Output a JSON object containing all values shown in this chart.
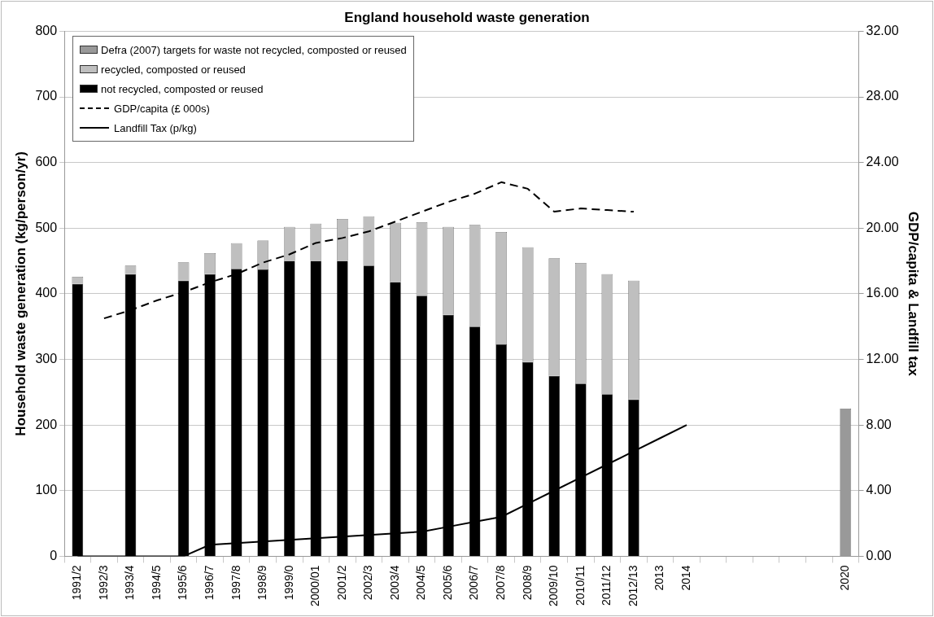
{
  "chart_data": {
    "type": "bar",
    "title": "England household waste generation",
    "ylabel": "Household waste generation (kg/person/yr)",
    "y2label": "GDP/capita & Landfill tax",
    "categories": [
      "1991/2",
      "1992/3",
      "1993/4",
      "1994/5",
      "1995/6",
      "1996/7",
      "1997/8",
      "1998/9",
      "1999/0",
      "2000/01",
      "2001/2",
      "2002/3",
      "2003/4",
      "2004/5",
      "2005/6",
      "2006/7",
      "2007/8",
      "2008/9",
      "2009/10",
      "2010/11",
      "2011/12",
      "2012/13",
      "2013",
      "2014",
      null,
      null,
      null,
      null,
      null,
      "2020"
    ],
    "stacked": true,
    "series": [
      {
        "name": "not recycled, composted or reused",
        "color": "#000000",
        "values": [
          415,
          null,
          430,
          null,
          420,
          430,
          438,
          437,
          450,
          450,
          450,
          443,
          418,
          397,
          368,
          350,
          323,
          296,
          275,
          263,
          247,
          239,
          null,
          null,
          null,
          null,
          null,
          null,
          null,
          null
        ]
      },
      {
        "name": "recycled, composted or reused",
        "color": "#bfbfbf",
        "values": [
          11,
          null,
          13,
          null,
          28,
          32,
          39,
          44,
          52,
          57,
          64,
          75,
          90,
          112,
          134,
          155,
          171,
          175,
          179,
          184,
          183,
          181,
          null,
          null,
          null,
          null,
          null,
          null,
          null,
          null
        ]
      },
      {
        "name": "Defra (2007) targets for waste not recycled, composted or reused",
        "color": "#999999",
        "values": [
          null,
          null,
          null,
          null,
          null,
          null,
          null,
          null,
          null,
          null,
          null,
          null,
          null,
          null,
          null,
          null,
          null,
          null,
          null,
          null,
          null,
          null,
          null,
          null,
          null,
          null,
          null,
          null,
          null,
          225
        ]
      },
      {
        "name": "GDP/capita (£ 000s)",
        "type": "line",
        "axis": "y2",
        "color": "#000000",
        "line_style": "dashed",
        "values": [
          null,
          14.5,
          15.0,
          15.6,
          16.1,
          16.7,
          17.2,
          17.9,
          18.4,
          19.1,
          19.4,
          19.8,
          20.4,
          21.0,
          21.6,
          22.1,
          22.8,
          22.4,
          21.0,
          21.2,
          21.1,
          21.0,
          null,
          null,
          null,
          null,
          null,
          null,
          null,
          null
        ]
      },
      {
        "name": "Landfill Tax (p/kg)",
        "type": "line",
        "axis": "y2",
        "color": "#000000",
        "line_style": "solid",
        "values": [
          0,
          0,
          0,
          0,
          0,
          0.7,
          0.8,
          0.9,
          1.0,
          1.1,
          1.2,
          1.3,
          1.4,
          1.5,
          1.8,
          2.1,
          2.4,
          3.2,
          4.0,
          4.8,
          5.6,
          6.4,
          7.2,
          8.0,
          null,
          null,
          null,
          null,
          null,
          null
        ]
      }
    ],
    "ylim": [
      0,
      800
    ],
    "yticks": [
      0,
      100,
      200,
      300,
      400,
      500,
      600,
      700,
      800
    ],
    "y2lim": [
      0,
      32
    ],
    "y2ticks": [
      {
        "value": 0,
        "label": "0.00"
      },
      {
        "value": 4,
        "label": "4.00"
      },
      {
        "value": 8,
        "label": "8.00"
      },
      {
        "value": 12,
        "label": "12.00"
      },
      {
        "value": 16,
        "label": "16.00"
      },
      {
        "value": 20,
        "label": "20.00"
      },
      {
        "value": 24,
        "label": "24.00"
      },
      {
        "value": 28,
        "label": "28.00"
      },
      {
        "value": 32,
        "label": "32.00"
      }
    ],
    "grid": "y",
    "legend": "top left",
    "marker": "none"
  }
}
